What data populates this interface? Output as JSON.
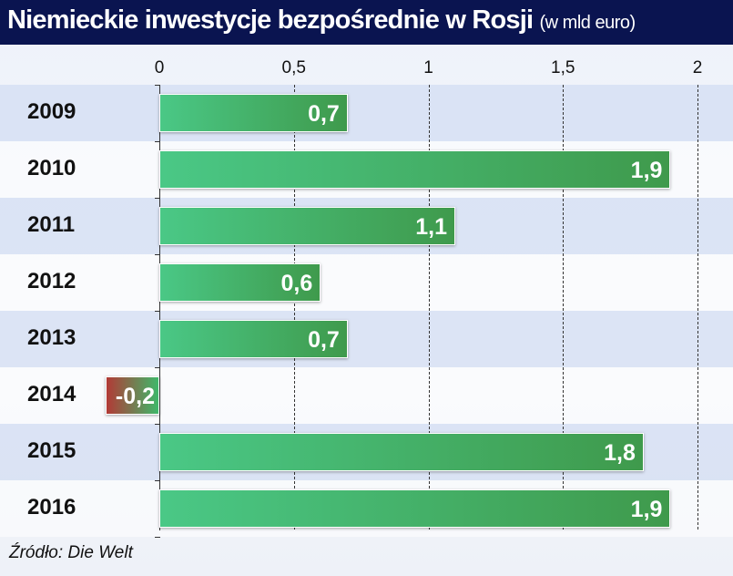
{
  "chart_data": {
    "type": "bar",
    "orientation": "horizontal",
    "title": "Niemieckie inwestycje bezpośrednie w Rosji",
    "subtitle": "(w mld euro)",
    "categories": [
      "2009",
      "2010",
      "2011",
      "2012",
      "2013",
      "2014",
      "2015",
      "2016"
    ],
    "values": [
      0.7,
      1.9,
      1.1,
      0.6,
      0.7,
      -0.2,
      1.8,
      1.9
    ],
    "data_labels": [
      "0,7",
      "1,9",
      "1,1",
      "0,6",
      "0,7",
      "-0,2",
      "1,8",
      "1,9"
    ],
    "ticks": [
      0,
      0.5,
      1,
      1.5,
      2
    ],
    "tick_labels": [
      "0",
      "0,5",
      "1",
      "1,5",
      "2"
    ],
    "xlim": [
      0,
      2
    ],
    "grid": true,
    "colors": {
      "positive": "#46b872",
      "negative": "#b23a36",
      "title_bg": "#0a1450"
    },
    "source": "Źródło: Die Welt"
  }
}
